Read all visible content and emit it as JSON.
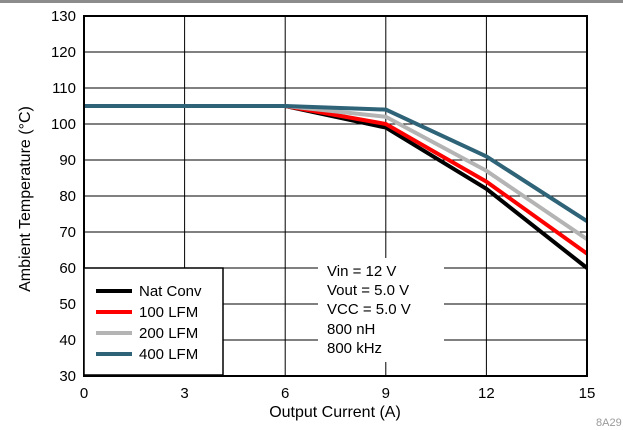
{
  "chart_data": {
    "type": "line",
    "xlabel": "Output Current (A)",
    "ylabel": "Ambient Temperature (°C)",
    "xlim": [
      0,
      15
    ],
    "ylim": [
      30,
      130
    ],
    "xticks": [
      0,
      3,
      6,
      9,
      12,
      15
    ],
    "yticks": [
      30,
      40,
      50,
      60,
      70,
      80,
      90,
      100,
      110,
      120,
      130
    ],
    "grid": true,
    "legend_position": "bottom-left",
    "series": [
      {
        "name": "Nat Conv",
        "color": "#000000",
        "x": [
          0,
          6,
          9,
          12,
          15
        ],
        "y": [
          105,
          105,
          99,
          82,
          60
        ]
      },
      {
        "name": "100 LFM",
        "color": "#ff0000",
        "x": [
          0,
          6,
          9,
          12,
          15
        ],
        "y": [
          105,
          105,
          100,
          84,
          64
        ]
      },
      {
        "name": "200 LFM",
        "color": "#b4b4b4",
        "x": [
          0,
          6,
          9,
          12,
          15
        ],
        "y": [
          105,
          105,
          102,
          87,
          68
        ]
      },
      {
        "name": "400 LFM",
        "color": "#2e6378",
        "x": [
          0,
          6,
          9,
          12,
          15
        ],
        "y": [
          105,
          105,
          104,
          91,
          73
        ]
      }
    ],
    "annotations": [
      "Vin = 12 V",
      "Vout = 5.0 V",
      "VCC = 5.0 V",
      "800 nH",
      "800 kHz"
    ],
    "figure_code": "8A29"
  }
}
